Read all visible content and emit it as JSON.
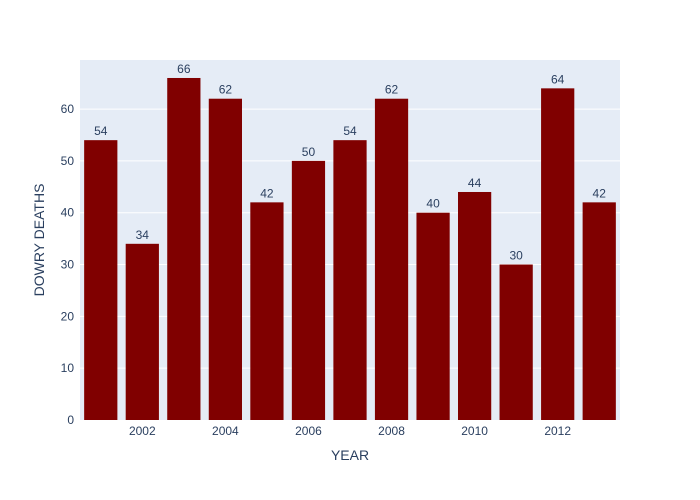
{
  "chart_data": {
    "type": "bar",
    "title": "",
    "xlabel": "YEAR",
    "ylabel": "DOWRY DEATHS",
    "categories": [
      2001,
      2002,
      2003,
      2004,
      2005,
      2006,
      2007,
      2008,
      2009,
      2010,
      2011,
      2012,
      2013
    ],
    "values": [
      54,
      34,
      66,
      62,
      42,
      50,
      54,
      62,
      40,
      44,
      30,
      64,
      42
    ],
    "data_labels": [
      "54",
      "34",
      "66",
      "62",
      "42",
      "50",
      "54",
      "62",
      "40",
      "44",
      "30",
      "64",
      "42"
    ],
    "x_ticks": [
      2002,
      2004,
      2006,
      2008,
      2010,
      2012
    ],
    "x_tick_labels": [
      "2002",
      "2004",
      "2006",
      "2008",
      "2010",
      "2012"
    ],
    "y_ticks": [
      0,
      10,
      20,
      30,
      40,
      50,
      60
    ],
    "y_tick_labels": [
      "0",
      "10",
      "20",
      "30",
      "40",
      "50",
      "60"
    ],
    "xlim": [
      2000.5,
      2013.5
    ],
    "ylim": [
      0,
      69.47
    ],
    "grid": true,
    "legend": "none",
    "colors": {
      "bar": "#800000",
      "plot_background": "#E5ECF6",
      "grid": "#ffffff",
      "text": "#2a3f5f"
    }
  }
}
